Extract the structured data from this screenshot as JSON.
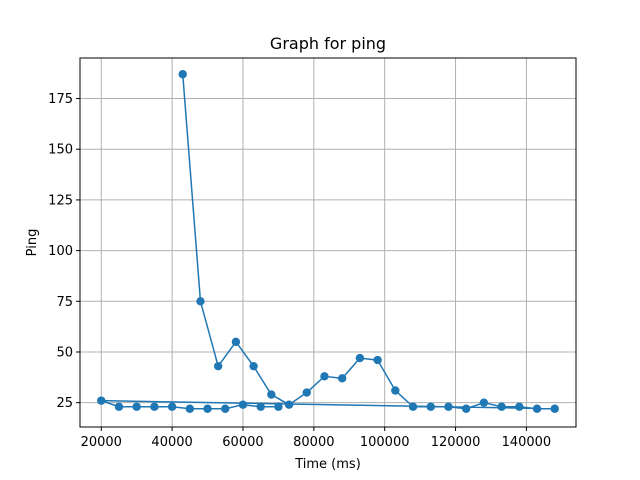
{
  "chart_data": {
    "type": "line",
    "title": "Graph for ping",
    "xlabel": "Time (ms)",
    "ylabel": "Ping",
    "xlim": [
      14000,
      154000
    ],
    "ylim": [
      13,
      195
    ],
    "xticks": [
      20000,
      40000,
      60000,
      80000,
      100000,
      120000,
      140000
    ],
    "yticks": [
      25,
      50,
      75,
      100,
      125,
      150,
      175
    ],
    "grid": true,
    "colors": {
      "series": "#1f77b4",
      "grid": "#b0b0b0"
    },
    "series": [
      {
        "marker": "circle",
        "x": [
          43000,
          48000,
          53000,
          58000,
          63000,
          68000,
          73000,
          78000,
          83000,
          88000,
          93000,
          98000,
          103000,
          108000,
          113000,
          118000,
          123000,
          128000,
          133000,
          138000,
          143000,
          148000,
          20000,
          25000,
          30000,
          35000,
          40000,
          45000,
          50000,
          55000,
          60000,
          65000,
          70000
        ],
        "y": [
          187,
          75,
          43,
          55,
          43,
          29,
          24,
          30,
          38,
          37,
          47,
          46,
          31,
          23,
          23,
          23,
          22,
          25,
          23,
          23,
          22,
          22,
          26,
          23,
          23,
          23,
          23,
          22,
          22,
          22,
          24,
          23,
          23
        ]
      }
    ]
  }
}
